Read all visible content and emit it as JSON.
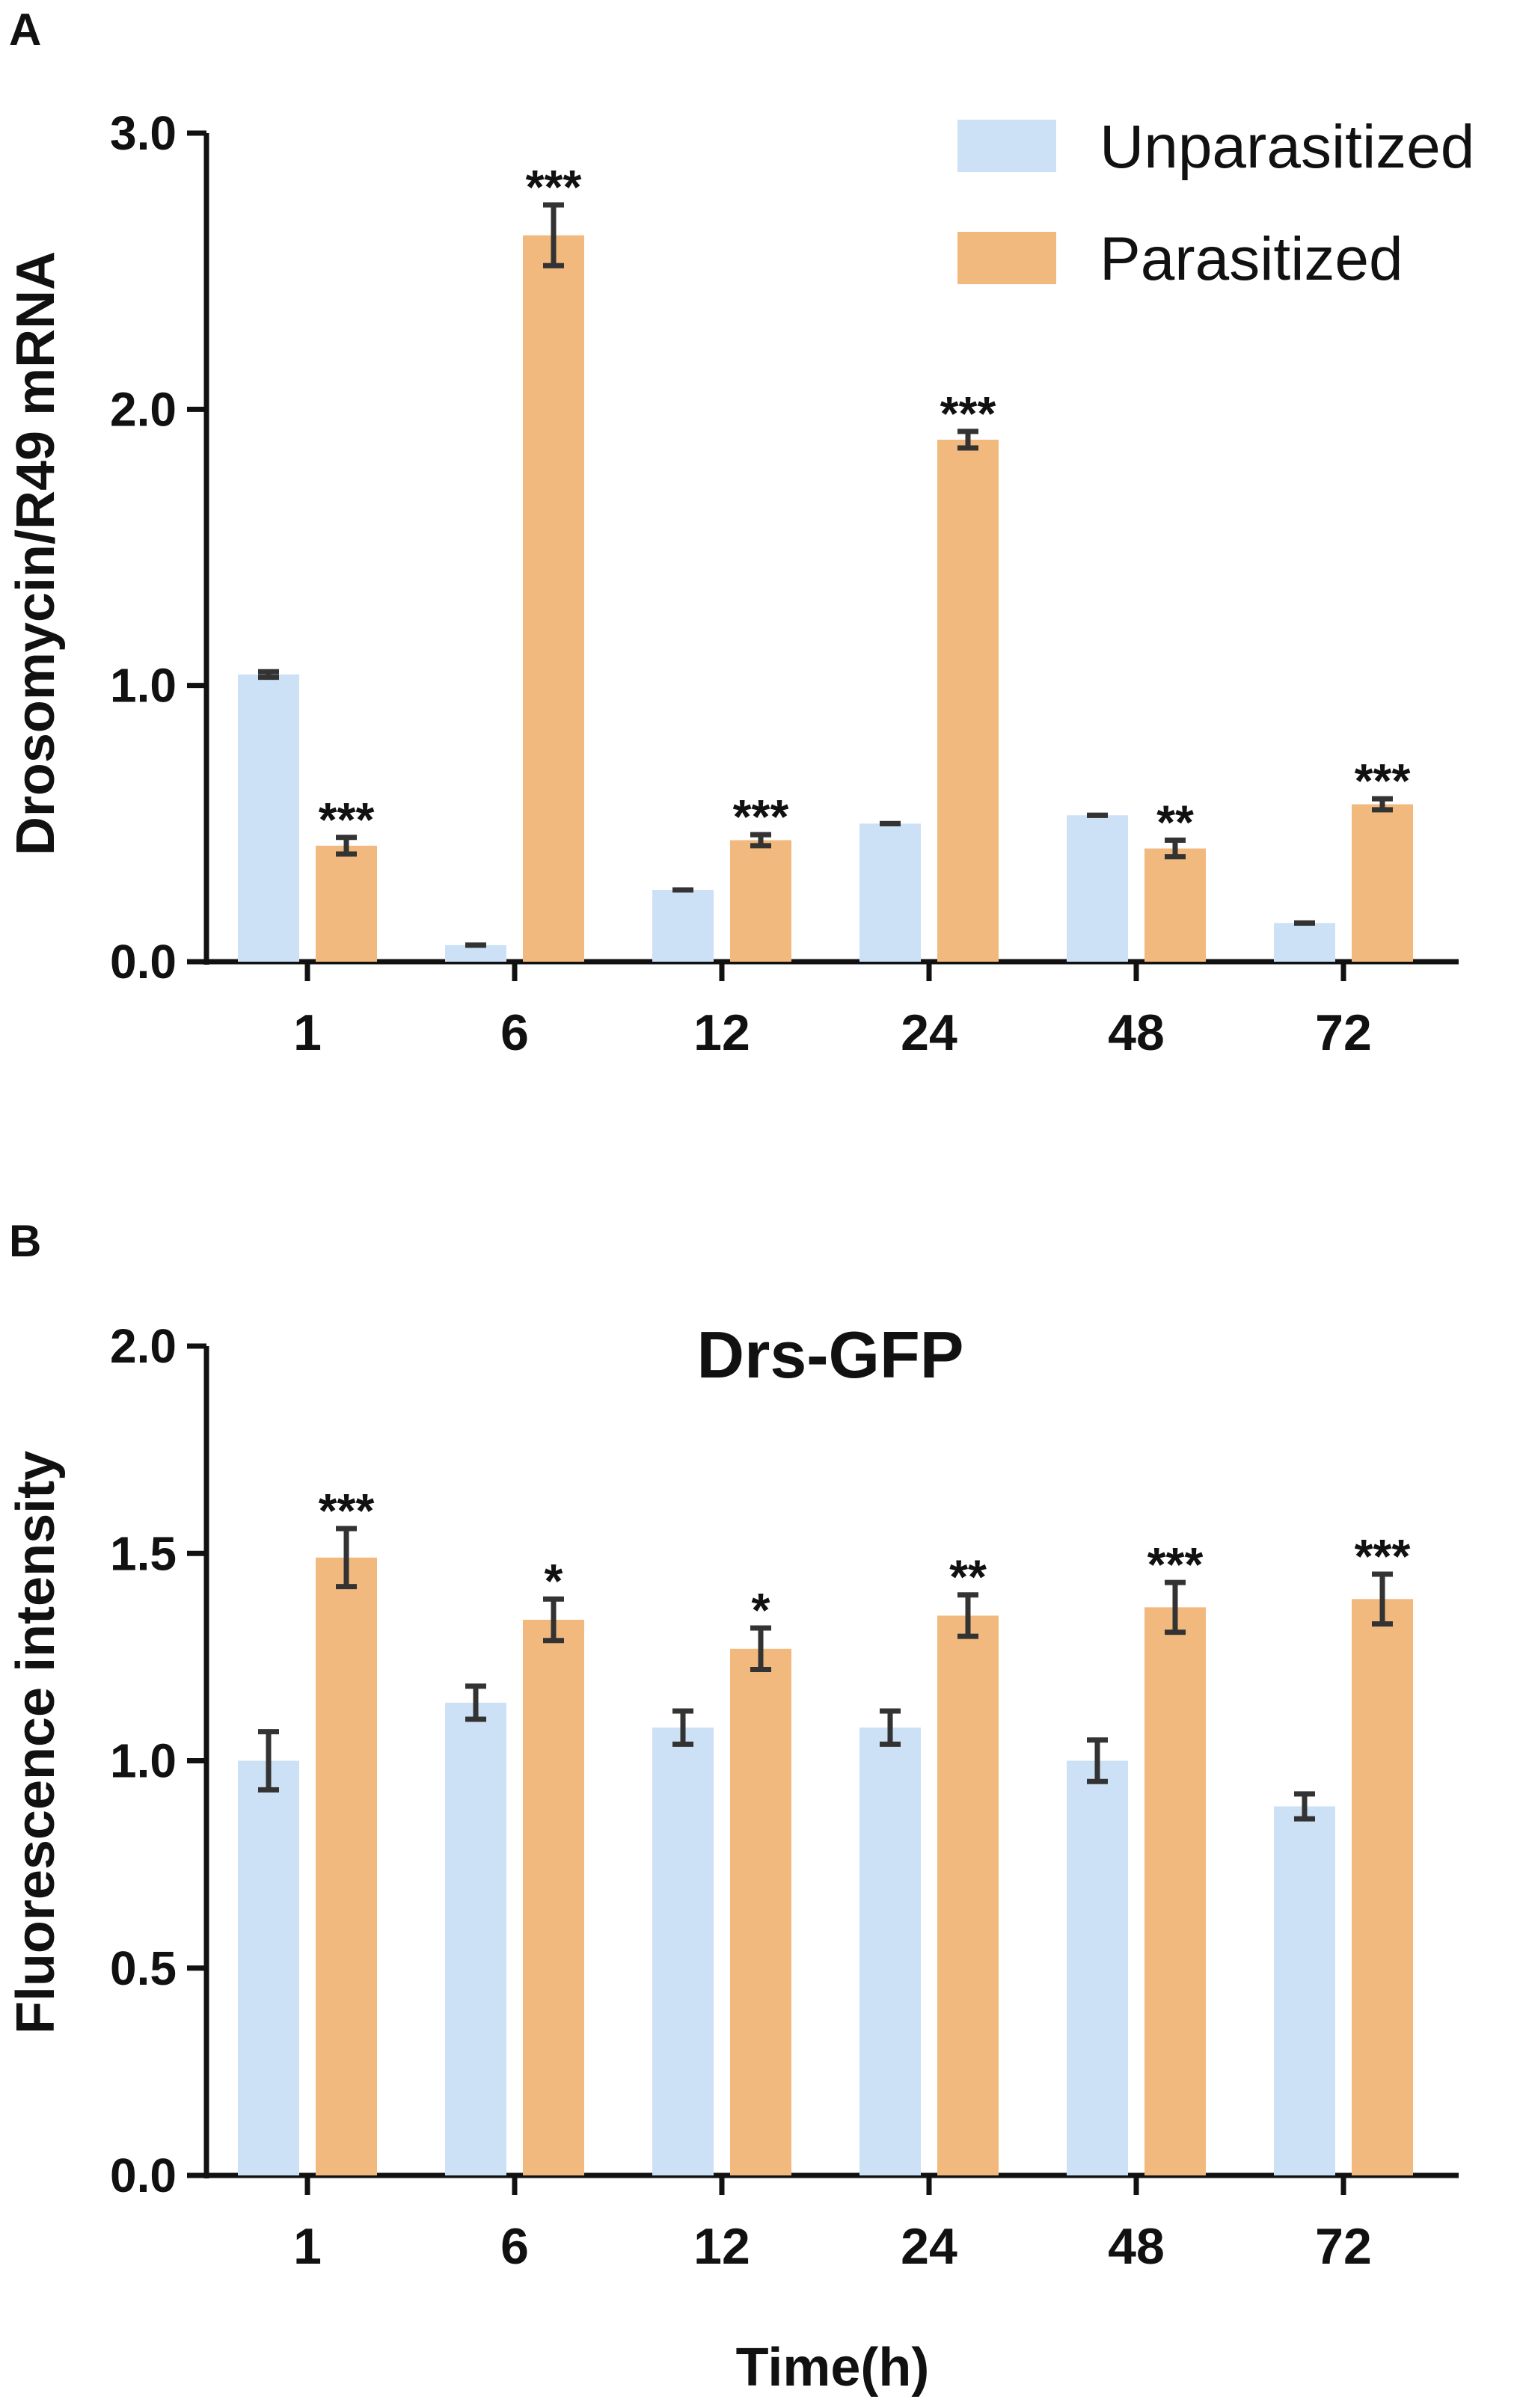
{
  "colors": {
    "unparasitized": "#cce0f6",
    "parasitized": "#f2b97e"
  },
  "legend": {
    "items": [
      "Unparasitized",
      "Parasitized"
    ]
  },
  "x_axis_title": "Time(h)",
  "chart_data": [
    {
      "panel": "A",
      "type": "bar",
      "title": "",
      "ylabel": "Drosomycin/R49 mRNA",
      "xlabel": "",
      "ylim": [
        0,
        3.0
      ],
      "yticks": [
        "0.0",
        "1.0",
        "2.0",
        "3.0"
      ],
      "ytick_values": [
        0,
        1,
        2,
        3
      ],
      "categories": [
        "1",
        "6",
        "12",
        "24",
        "48",
        "72"
      ],
      "series": [
        {
          "name": "Unparasitized",
          "values": [
            1.04,
            0.06,
            0.26,
            0.5,
            0.53,
            0.14
          ],
          "errors": [
            0.01,
            0.0,
            0.0,
            0.0,
            0.0,
            0.0
          ]
        },
        {
          "name": "Parasitized",
          "values": [
            0.42,
            2.63,
            0.44,
            1.89,
            0.41,
            0.57
          ],
          "errors": [
            0.03,
            0.11,
            0.02,
            0.03,
            0.03,
            0.02
          ]
        }
      ],
      "significance": [
        "***",
        "***",
        "***",
        "***",
        "**",
        "***"
      ],
      "legend_position": "top-right"
    },
    {
      "panel": "B",
      "type": "bar",
      "title": "Drs-GFP",
      "ylabel": "Fluorescence intensity",
      "xlabel": "Time(h)",
      "ylim": [
        0,
        2.0
      ],
      "yticks": [
        "0.0",
        "0.5",
        "1.0",
        "1.5",
        "2.0"
      ],
      "ytick_values": [
        0,
        0.5,
        1.0,
        1.5,
        2.0
      ],
      "categories": [
        "1",
        "6",
        "12",
        "24",
        "48",
        "72"
      ],
      "series": [
        {
          "name": "Unparasitized",
          "values": [
            1.0,
            1.14,
            1.08,
            1.08,
            1.0,
            0.89
          ],
          "errors": [
            0.07,
            0.04,
            0.04,
            0.04,
            0.05,
            0.03
          ]
        },
        {
          "name": "Parasitized",
          "values": [
            1.49,
            1.34,
            1.27,
            1.35,
            1.37,
            1.39
          ],
          "errors": [
            0.07,
            0.05,
            0.05,
            0.05,
            0.06,
            0.06
          ]
        }
      ],
      "significance": [
        "***",
        "*",
        "*",
        "**",
        "***",
        "***"
      ]
    }
  ]
}
